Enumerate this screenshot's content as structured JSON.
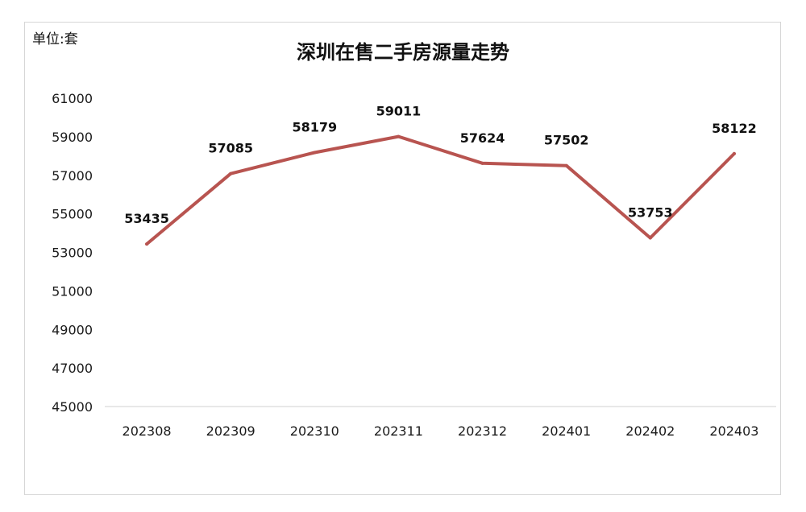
{
  "chart_data": {
    "type": "line",
    "title": "深圳在售二手房源量走势",
    "unit_label": "单位:套",
    "xlabel": "",
    "ylabel": "",
    "categories": [
      "202308",
      "202309",
      "202310",
      "202311",
      "202312",
      "202401",
      "202402",
      "202403"
    ],
    "series": [
      {
        "values": [
          53435,
          57085,
          58179,
          59011,
          57624,
          57502,
          53753,
          58122
        ]
      }
    ],
    "ylim": [
      45000,
      61000
    ],
    "yticks": [
      45000,
      47000,
      49000,
      51000,
      53000,
      55000,
      57000,
      59000,
      61000
    ],
    "grid": false,
    "legend": "none",
    "colors": {
      "line": "#b85450",
      "axis": "#d9d9d9",
      "frame": "#d6d6d6"
    }
  }
}
